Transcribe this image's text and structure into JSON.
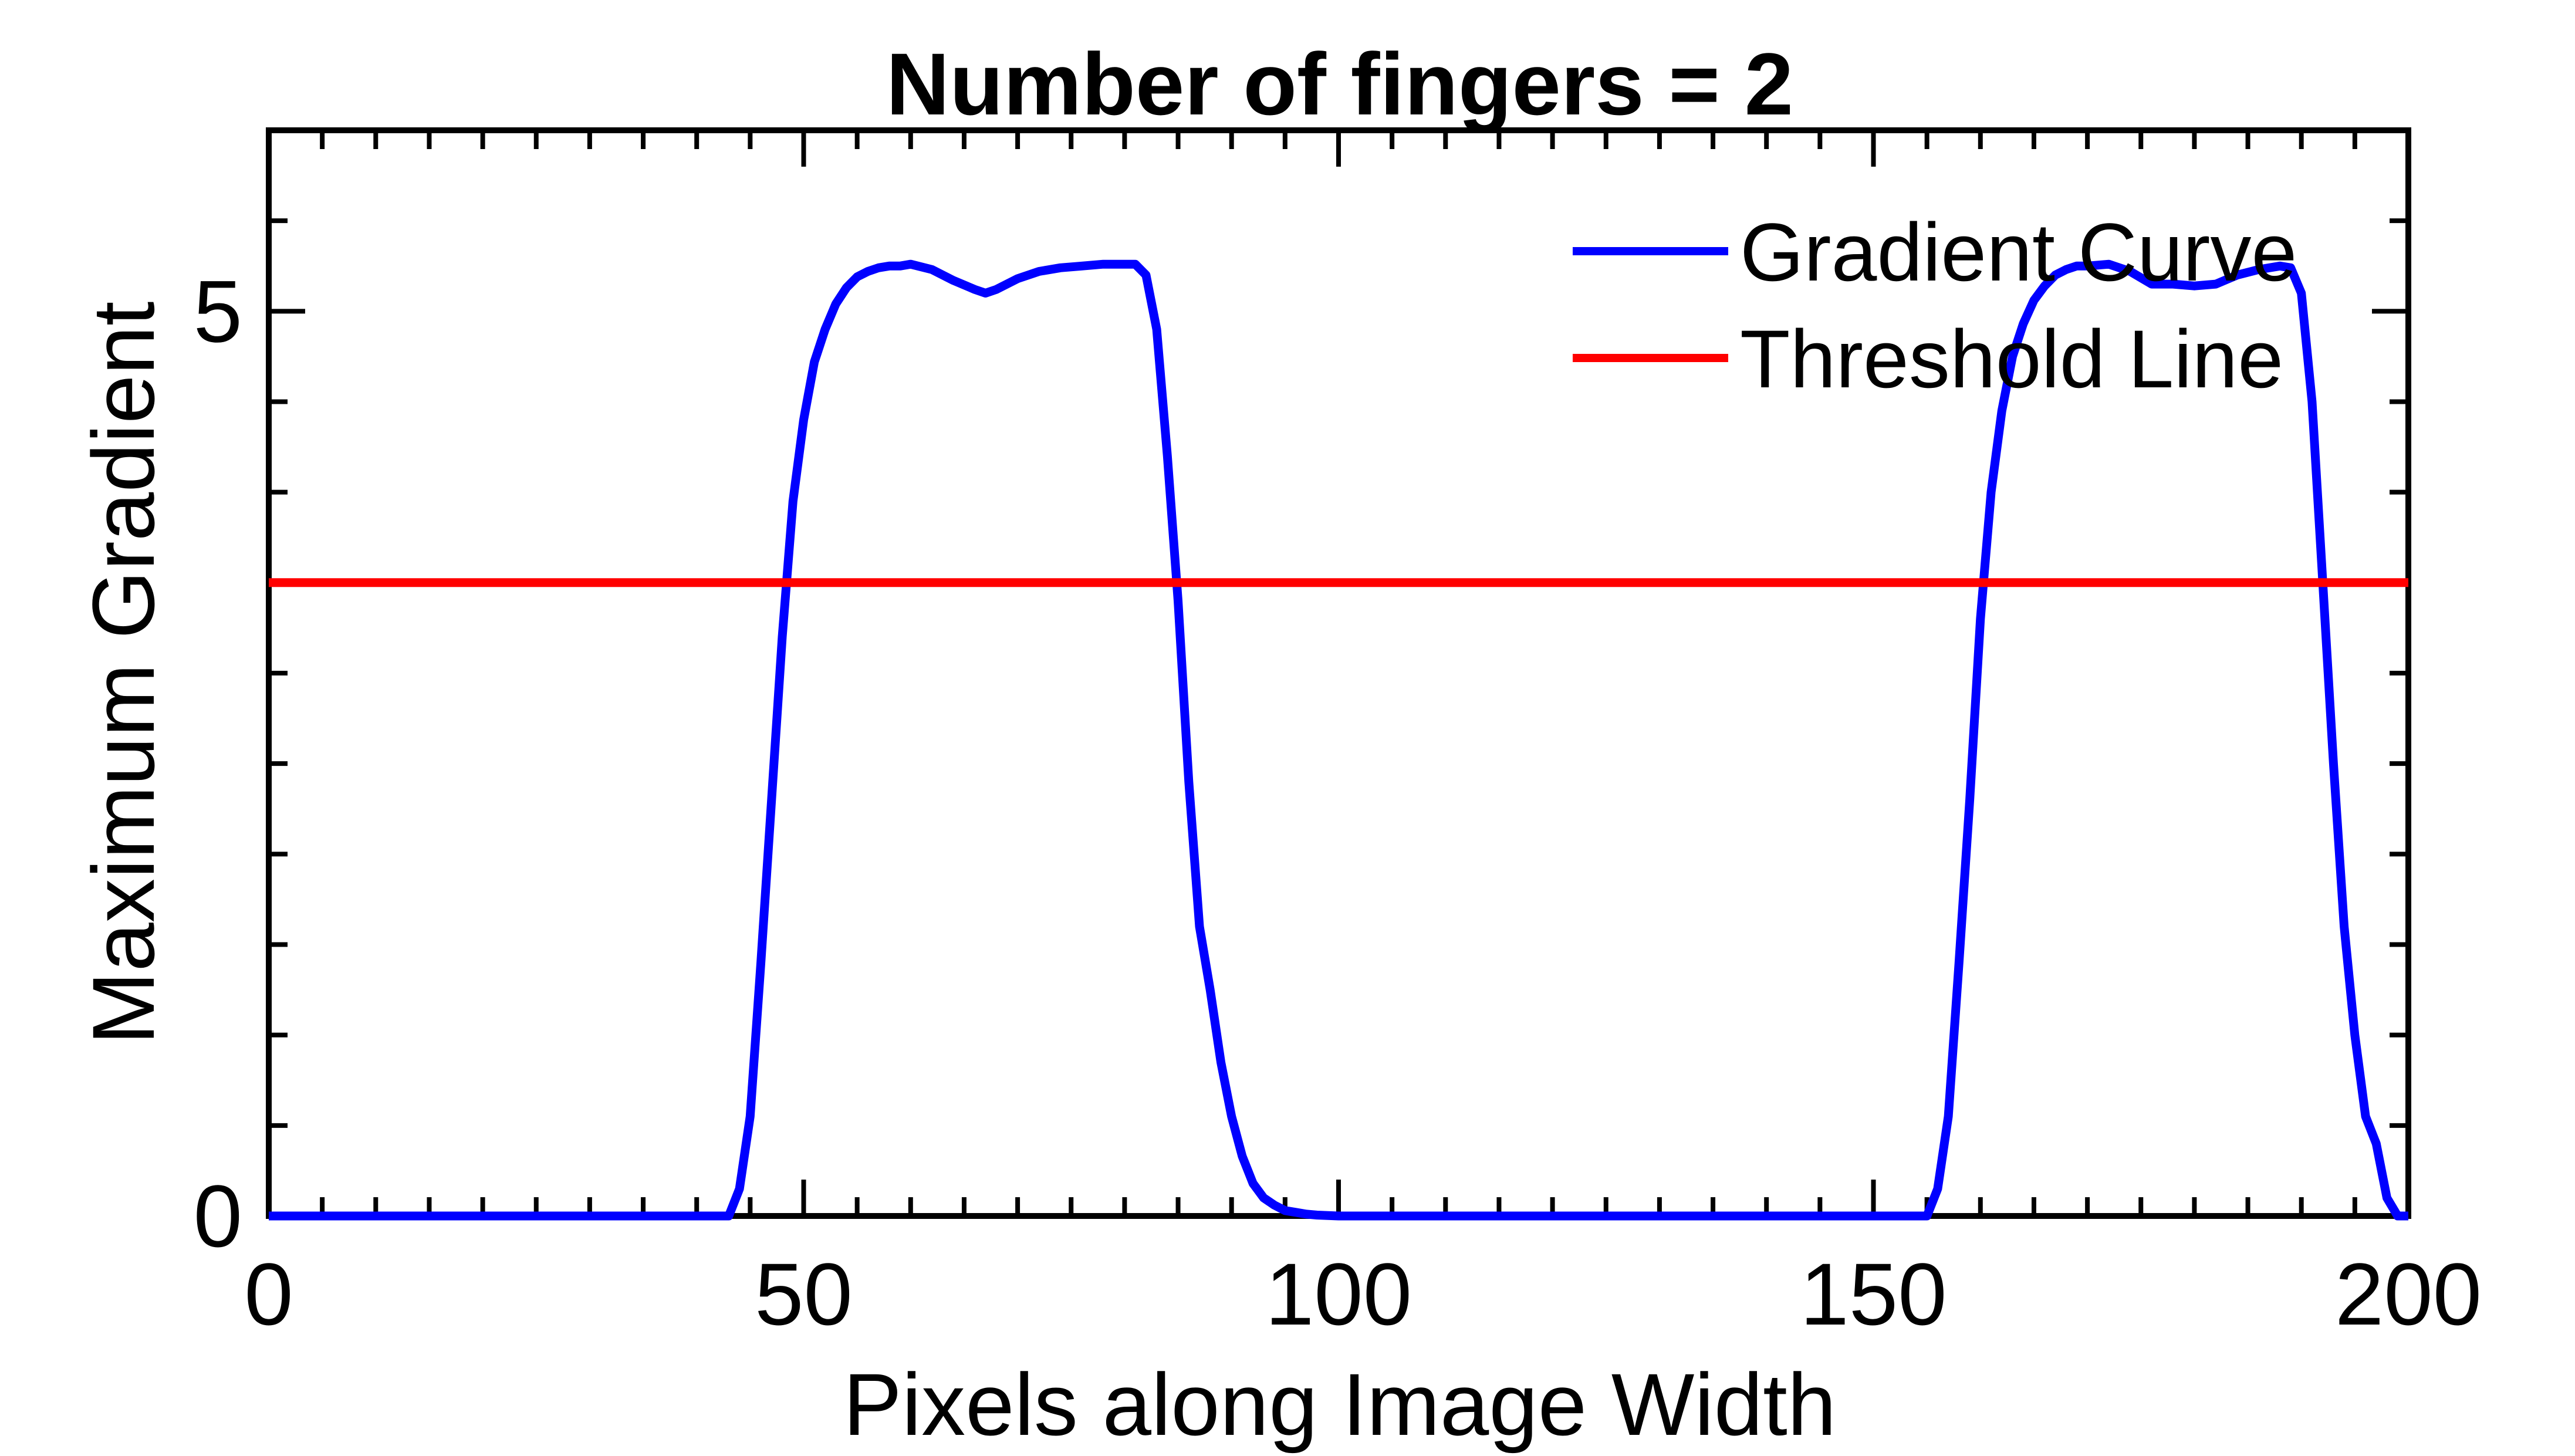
{
  "chart_data": {
    "type": "line",
    "title": "Number of fingers = 2",
    "xlabel": "Pixels along Image Width",
    "ylabel": "Maximum Gradient",
    "xlim": [
      0,
      200
    ],
    "ylim": [
      0,
      6
    ],
    "x_ticks": [
      {
        "value": 0,
        "label": "0"
      },
      {
        "value": 50,
        "label": "50"
      },
      {
        "value": 100,
        "label": "100"
      },
      {
        "value": 150,
        "label": "150"
      },
      {
        "value": 200,
        "label": "200"
      }
    ],
    "y_ticks": [
      {
        "value": 0,
        "label": "0"
      },
      {
        "value": 5,
        "label": "5"
      }
    ],
    "x_minor_step": 5,
    "y_minor_step": 0.5,
    "grid": false,
    "legend_position": "top-right",
    "series": [
      {
        "name": "Gradient Curve",
        "color": "#0000ff",
        "x": [
          0,
          43,
          44,
          45,
          46,
          47,
          48,
          49,
          50,
          51,
          52,
          53,
          54,
          55,
          56,
          57,
          58,
          59,
          60,
          62,
          64,
          66,
          67,
          68,
          70,
          72,
          74,
          76,
          78,
          80,
          81,
          82,
          83,
          84,
          85,
          86,
          87,
          88,
          89,
          90,
          91,
          92,
          93,
          94,
          95,
          96,
          97,
          98,
          100,
          103,
          110,
          155,
          156,
          157,
          158,
          159,
          160,
          161,
          162,
          163,
          164,
          165,
          166,
          167,
          168,
          169,
          170,
          172,
          174,
          176,
          178,
          180,
          182,
          184,
          186,
          188,
          189,
          190,
          191,
          192,
          193,
          194,
          195,
          196,
          197,
          198,
          199,
          200
        ],
        "y": [
          0,
          0,
          0.15,
          0.55,
          1.4,
          2.3,
          3.2,
          3.95,
          4.4,
          4.72,
          4.9,
          5.04,
          5.13,
          5.19,
          5.22,
          5.24,
          5.25,
          5.25,
          5.26,
          5.23,
          5.17,
          5.12,
          5.1,
          5.12,
          5.18,
          5.22,
          5.24,
          5.25,
          5.26,
          5.26,
          5.26,
          5.2,
          4.9,
          4.2,
          3.4,
          2.4,
          1.6,
          1.25,
          0.85,
          0.55,
          0.33,
          0.18,
          0.1,
          0.06,
          0.03,
          0.02,
          0.01,
          0.005,
          0,
          0,
          0,
          0,
          0.15,
          0.55,
          1.4,
          2.3,
          3.3,
          4.0,
          4.45,
          4.75,
          4.93,
          5.06,
          5.14,
          5.2,
          5.23,
          5.25,
          5.25,
          5.26,
          5.22,
          5.15,
          5.15,
          5.14,
          5.15,
          5.2,
          5.23,
          5.25,
          5.24,
          5.1,
          4.5,
          3.5,
          2.5,
          1.6,
          1.0,
          0.55,
          0.4,
          0.1,
          0,
          0
        ]
      },
      {
        "name": "Threshold Line",
        "color": "#ff0000",
        "x": [
          0,
          200
        ],
        "y": [
          3.5,
          3.5
        ]
      }
    ]
  }
}
